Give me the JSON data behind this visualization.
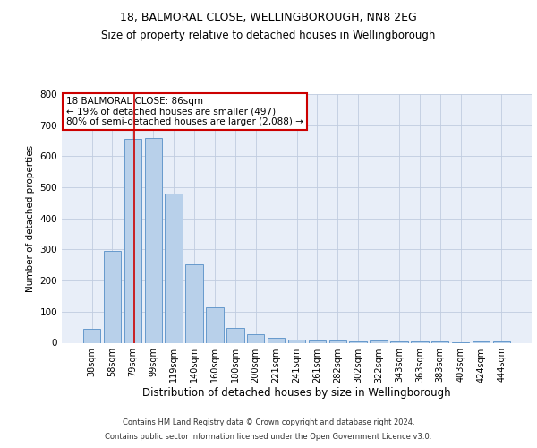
{
  "title_line1": "18, BALMORAL CLOSE, WELLINGBOROUGH, NN8 2EG",
  "title_line2": "Size of property relative to detached houses in Wellingborough",
  "xlabel": "Distribution of detached houses by size in Wellingborough",
  "ylabel": "Number of detached properties",
  "categories": [
    "38sqm",
    "58sqm",
    "79sqm",
    "99sqm",
    "119sqm",
    "140sqm",
    "160sqm",
    "180sqm",
    "200sqm",
    "221sqm",
    "241sqm",
    "261sqm",
    "282sqm",
    "302sqm",
    "322sqm",
    "343sqm",
    "363sqm",
    "383sqm",
    "403sqm",
    "424sqm",
    "444sqm"
  ],
  "values": [
    45,
    295,
    655,
    660,
    480,
    252,
    113,
    48,
    27,
    17,
    10,
    8,
    6,
    5,
    8,
    5,
    5,
    5,
    2,
    5,
    5
  ],
  "bar_color": "#b8d0ea",
  "bar_edge_color": "#6699cc",
  "vline_color": "#cc0000",
  "vline_x_index": 2.05,
  "annotation_text": "18 BALMORAL CLOSE: 86sqm\n← 19% of detached houses are smaller (497)\n80% of semi-detached houses are larger (2,088) →",
  "annotation_box_facecolor": "#ffffff",
  "annotation_box_edgecolor": "#cc0000",
  "ylim": [
    0,
    800
  ],
  "yticks": [
    0,
    100,
    200,
    300,
    400,
    500,
    600,
    700,
    800
  ],
  "footer_line1": "Contains HM Land Registry data © Crown copyright and database right 2024.",
  "footer_line2": "Contains public sector information licensed under the Open Government Licence v3.0.",
  "bg_color": "#ffffff",
  "plot_bg_color": "#e8eef8",
  "grid_color": "#c0cce0",
  "title1_fontsize": 9,
  "title2_fontsize": 8.5
}
